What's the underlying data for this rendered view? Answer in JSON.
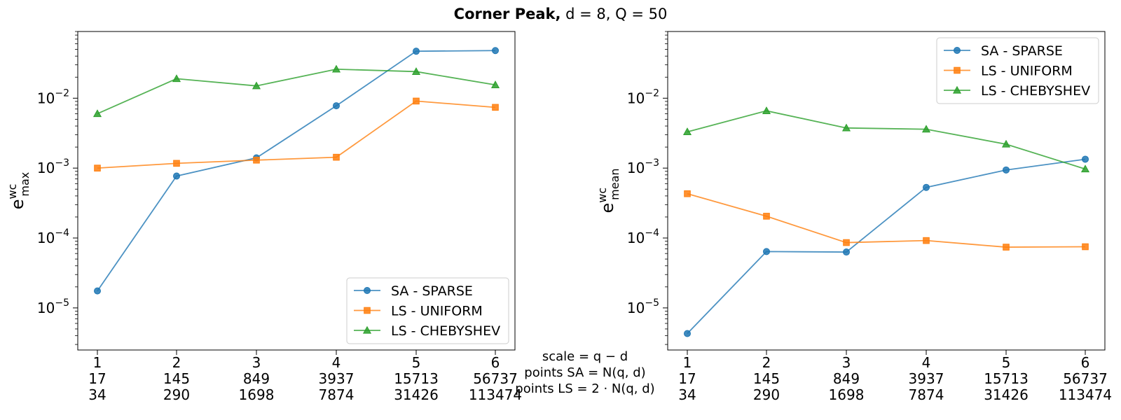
{
  "title": {
    "bold_prefix": "Corner Peak,",
    "rest": "d = 8, Q = 50"
  },
  "x_description": {
    "line1": "scale = q − d",
    "line2": "points SA = N(q, d)",
    "line3": "points LS = 2 · N(q, d)"
  },
  "chart_data": [
    {
      "type": "line",
      "ylabel": "e_max^wc",
      "yscale": "log",
      "ylim": [
        2.5e-06,
        0.09
      ],
      "y_ticks": [
        "10^-5",
        "10^-4",
        "10^-3",
        "10^-2"
      ],
      "x": [
        1,
        2,
        3,
        4,
        5,
        6
      ],
      "x_tick_rows": [
        [
          "1",
          "2",
          "3",
          "4",
          "5",
          "6"
        ],
        [
          "17",
          "145",
          "849",
          "3937",
          "15713",
          "56737"
        ],
        [
          "34",
          "290",
          "1698",
          "7874",
          "31426",
          "113474"
        ]
      ],
      "legend_position": "lower right",
      "series": [
        {
          "name": "SA - SPARSE",
          "color": "#1f77b4",
          "marker": "circle",
          "values": [
            1.75e-05,
            0.00077,
            0.0014,
            0.0078,
            0.047,
            0.048
          ]
        },
        {
          "name": "LS - UNIFORM",
          "color": "#ff7f0e",
          "marker": "square",
          "values": [
            0.001,
            0.00117,
            0.0013,
            0.00143,
            0.0091,
            0.0074
          ]
        },
        {
          "name": "LS - CHEBYSHEV",
          "color": "#2ca02c",
          "marker": "triangle",
          "values": [
            0.006,
            0.019,
            0.015,
            0.026,
            0.024,
            0.0155
          ]
        }
      ]
    },
    {
      "type": "line",
      "ylabel": "e_mean^wc",
      "yscale": "log",
      "ylim": [
        2.5e-06,
        0.09
      ],
      "y_ticks": [
        "10^-5",
        "10^-4",
        "10^-3",
        "10^-2"
      ],
      "x": [
        1,
        2,
        3,
        4,
        5,
        6
      ],
      "x_tick_rows": [
        [
          "1",
          "2",
          "3",
          "4",
          "5",
          "6"
        ],
        [
          "17",
          "145",
          "849",
          "3937",
          "15713",
          "56737"
        ],
        [
          "34",
          "290",
          "1698",
          "7874",
          "31426",
          "113474"
        ]
      ],
      "legend_position": "upper right",
      "series": [
        {
          "name": "SA - SPARSE",
          "color": "#1f77b4",
          "marker": "circle",
          "values": [
            4.3e-06,
            6.4e-05,
            6.3e-05,
            0.00053,
            0.00094,
            0.00134
          ]
        },
        {
          "name": "LS - UNIFORM",
          "color": "#ff7f0e",
          "marker": "square",
          "values": [
            0.00043,
            0.000205,
            8.6e-05,
            9.2e-05,
            7.4e-05,
            7.5e-05
          ]
        },
        {
          "name": "LS - CHEBYSHEV",
          "color": "#2ca02c",
          "marker": "triangle",
          "values": [
            0.0033,
            0.0066,
            0.00375,
            0.0036,
            0.0022,
            0.00097
          ]
        }
      ]
    }
  ]
}
